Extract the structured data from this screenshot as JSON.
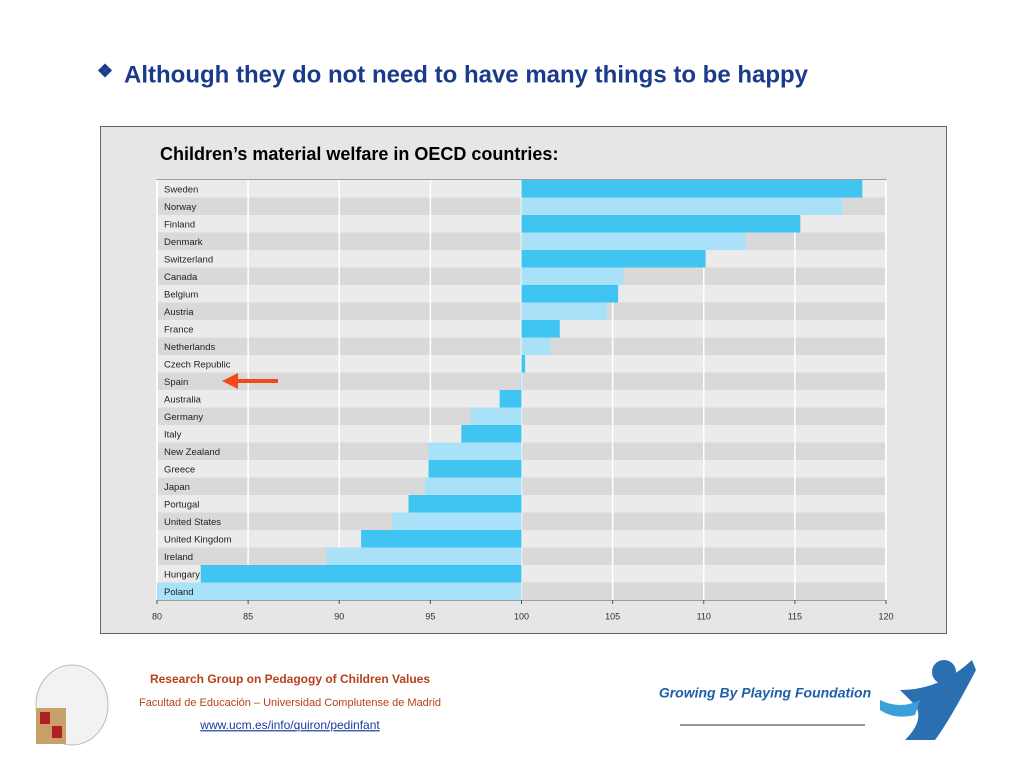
{
  "slide": {
    "title": "Although they do not need to have many things to be happy",
    "footer": {
      "group": "Research Group on Pedagogy of Children Values",
      "faculty": "Facultad de Educación – Universidad Complutense de Madrid",
      "url": "www.ucm.es/info/quiron/pedinfant",
      "foundation": "Growing By Playing Foundation"
    }
  },
  "chart_data": {
    "type": "hbar",
    "title": "Children’s material welfare in OECD countries:",
    "categories": [
      "Sweden",
      "Norway",
      "Finland",
      "Denmark",
      "Switzerland",
      "Canada",
      "Belgium",
      "Austria",
      "France",
      "Netherlands",
      "Czech Republic",
      "Spain",
      "Australia",
      "Germany",
      "Italy",
      "New Zealand",
      "Greece",
      "Japan",
      "Portugal",
      "United States",
      "United Kingdom",
      "Ireland",
      "Hungary",
      "Poland"
    ],
    "values": [
      118.7,
      117.6,
      115.3,
      112.3,
      110.1,
      105.6,
      105.3,
      104.7,
      102.1,
      101.6,
      100.2,
      99.9,
      98.8,
      97.2,
      96.7,
      94.9,
      94.9,
      94.7,
      93.8,
      92.9,
      91.2,
      89.3,
      82.4,
      80
    ],
    "base": 100,
    "colors": [
      "#40c4f2",
      "#a9e1f9"
    ],
    "xlim": [
      80,
      120
    ],
    "xticks": [
      80,
      85,
      90,
      95,
      100,
      105,
      110,
      115,
      120
    ],
    "grid": true
  }
}
